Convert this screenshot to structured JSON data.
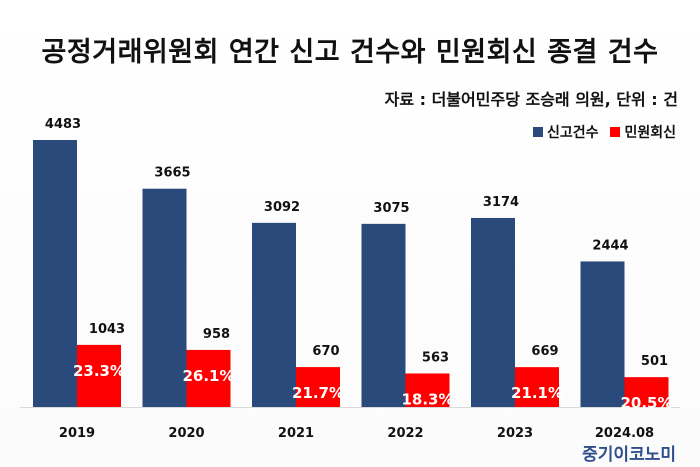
{
  "title": "공정거래위원회 연간 신고 건수와 민원회신 종결 건수",
  "source": "자료 : 더불어민주당 조승래 의원, 단위 : 건",
  "watermark": "중기이코노미",
  "colors": {
    "report": "#2B4A7C",
    "reply": "#FF0000",
    "label_text": "#111111",
    "pct_text": "#FFFFFF"
  },
  "chart_data": {
    "type": "bar",
    "categories": [
      "2019",
      "2020",
      "2021",
      "2022",
      "2023",
      "2024.08"
    ],
    "series": [
      {
        "name": "신고건수",
        "values": [
          4483,
          3665,
          3092,
          3075,
          3174,
          2444
        ]
      },
      {
        "name": "민원회신",
        "values": [
          1043,
          958,
          670,
          563,
          669,
          501
        ]
      }
    ],
    "percent_labels": [
      "23.3%",
      "26.1%",
      "21.7%",
      "18.3%",
      "21.1%",
      "20.5%"
    ],
    "legend_position": "top-right",
    "grid": false,
    "ylim": [
      0,
      4483
    ]
  }
}
